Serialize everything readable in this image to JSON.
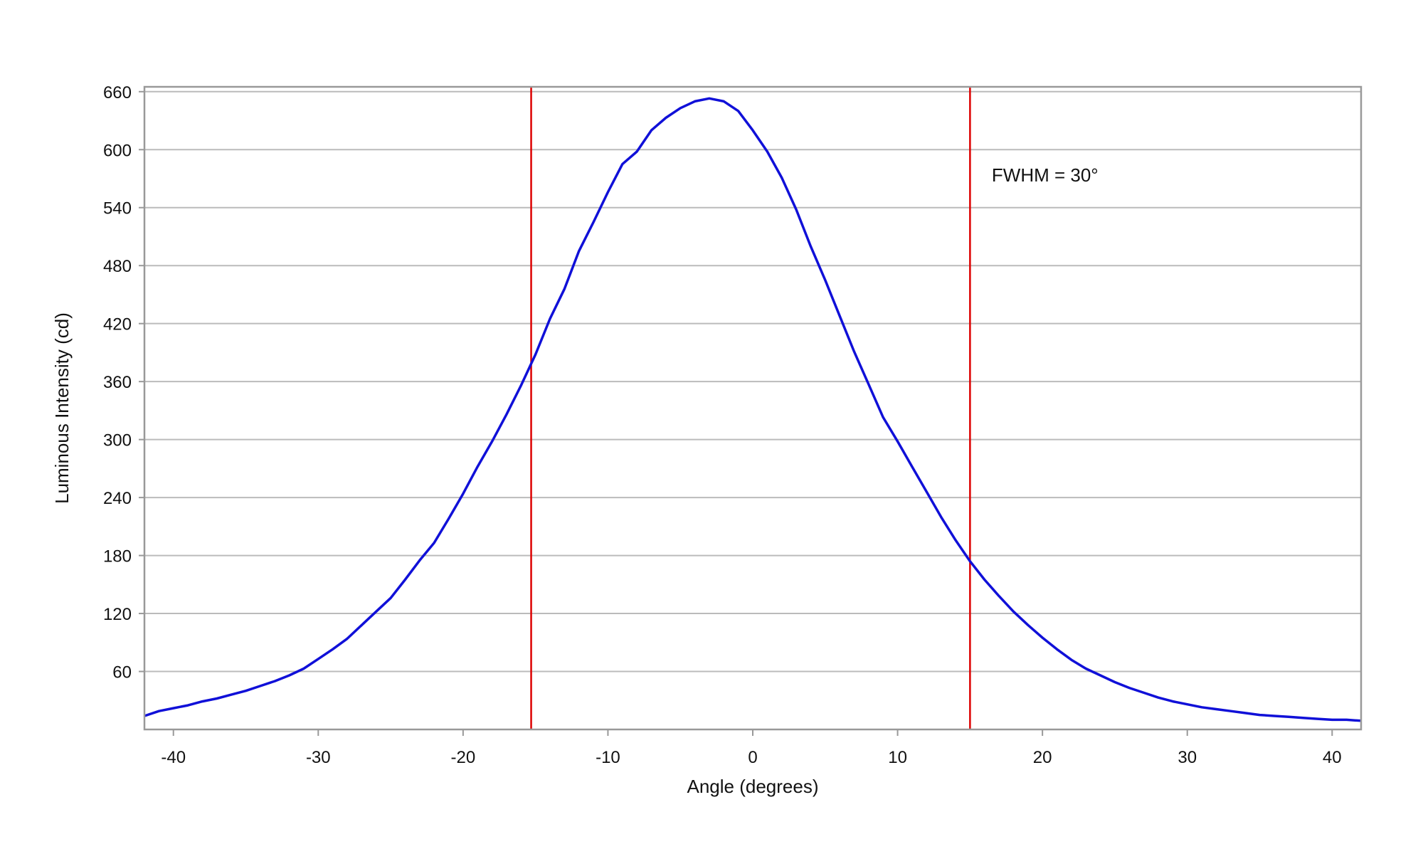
{
  "chart_data": {
    "type": "line",
    "title": "",
    "xlabel": "Angle (degrees)",
    "ylabel": "Luminous Intensity (cd)",
    "xlim": [
      -42,
      42
    ],
    "ylim": [
      0,
      665
    ],
    "xticks": [
      -40,
      -30,
      -20,
      -10,
      0,
      10,
      20,
      30,
      40
    ],
    "yticks": [
      60,
      120,
      180,
      240,
      300,
      360,
      420,
      480,
      540,
      600,
      660
    ],
    "grid": {
      "horizontal": true,
      "vertical": false
    },
    "colors": {
      "series": "#1010d8",
      "markers": "#dd0000",
      "grid": "#bbbbbb",
      "frame": "#999999"
    },
    "series": [
      {
        "x": [
          -42,
          -41,
          -40,
          -39,
          -38,
          -37,
          -36,
          -35,
          -34,
          -33,
          -32,
          -31,
          -30,
          -29,
          -28,
          -27,
          -26,
          -25,
          -24,
          -23,
          -22,
          -21,
          -20,
          -19,
          -18,
          -17,
          -16,
          -15,
          -14,
          -13,
          -12,
          -11,
          -10,
          -9,
          -8,
          -7,
          -6,
          -5,
          -4,
          -3,
          -2,
          -1,
          0,
          1,
          2,
          3,
          4,
          5,
          6,
          7,
          8,
          9,
          10,
          11,
          12,
          13,
          14,
          15,
          16,
          17,
          18,
          19,
          20,
          21,
          22,
          23,
          24,
          25,
          26,
          27,
          28,
          29,
          30,
          31,
          32,
          33,
          34,
          35,
          36,
          37,
          38,
          39,
          40,
          41,
          42
        ],
        "values": [
          14,
          19,
          22,
          25,
          29,
          32,
          36,
          40,
          45,
          50,
          56,
          63,
          73,
          83,
          94,
          108,
          122,
          136,
          155,
          175,
          193,
          218,
          244,
          272,
          298,
          326,
          356,
          388,
          425,
          456,
          495,
          525,
          556,
          585,
          598,
          620,
          633,
          643,
          650,
          653,
          650,
          640,
          620,
          598,
          571,
          538,
          500,
          465,
          428,
          391,
          357,
          323,
          298,
          272,
          246,
          220,
          196,
          174,
          155,
          138,
          122,
          108,
          95,
          83,
          72,
          63,
          56,
          49,
          43,
          38,
          33,
          29,
          26,
          23,
          21,
          19,
          17,
          15,
          14,
          13,
          12,
          11,
          10,
          10,
          9
        ]
      }
    ],
    "vlines": [
      -15.3,
      15
    ],
    "annotation": {
      "text": "FWHM = 30°",
      "x": 16.5,
      "y": 567
    }
  }
}
